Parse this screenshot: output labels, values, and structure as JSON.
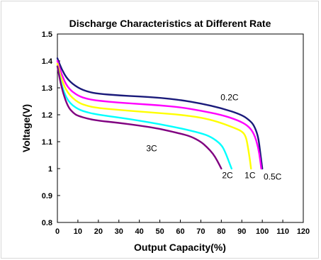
{
  "chart_data": {
    "type": "line",
    "title": "Discharge Characteristics at Different Rate",
    "xlabel": "Output Capacity(%)",
    "ylabel": "Voltage(V)",
    "xlim": [
      0,
      120
    ],
    "ylim": [
      0.8,
      1.5
    ],
    "xticks": [
      "0",
      "10",
      "20",
      "30",
      "40",
      "50",
      "60",
      "70",
      "80",
      "90",
      "100",
      "110",
      "120"
    ],
    "yticks": [
      "0.8",
      "0.9",
      "1",
      "1.1",
      "1.2",
      "1.3",
      "1.4",
      "1.5"
    ],
    "grid": false,
    "series": [
      {
        "name": "0.2C",
        "color": "#1a1a7a",
        "points": [
          [
            0,
            1.41
          ],
          [
            2,
            1.37
          ],
          [
            5,
            1.33
          ],
          [
            10,
            1.3
          ],
          [
            15,
            1.285
          ],
          [
            20,
            1.278
          ],
          [
            30,
            1.272
          ],
          [
            40,
            1.268
          ],
          [
            50,
            1.263
          ],
          [
            60,
            1.255
          ],
          [
            70,
            1.242
          ],
          [
            80,
            1.225
          ],
          [
            90,
            1.2
          ],
          [
            94,
            1.178
          ],
          [
            96,
            1.16
          ],
          [
            98,
            1.12
          ],
          [
            99,
            1.06
          ],
          [
            100,
            1.0
          ]
        ]
      },
      {
        "name": "0.5C",
        "color": "#ff00ff",
        "points": [
          [
            0,
            1.4
          ],
          [
            2,
            1.35
          ],
          [
            5,
            1.3
          ],
          [
            10,
            1.27
          ],
          [
            15,
            1.258
          ],
          [
            20,
            1.252
          ],
          [
            30,
            1.245
          ],
          [
            40,
            1.24
          ],
          [
            50,
            1.235
          ],
          [
            60,
            1.228
          ],
          [
            70,
            1.215
          ],
          [
            80,
            1.2
          ],
          [
            88,
            1.18
          ],
          [
            93,
            1.16
          ],
          [
            96,
            1.13
          ],
          [
            98,
            1.08
          ],
          [
            99,
            1.03
          ],
          [
            99.5,
            1.0
          ]
        ]
      },
      {
        "name": "1C",
        "color": "#ffff00",
        "points": [
          [
            0,
            1.39
          ],
          [
            2,
            1.33
          ],
          [
            5,
            1.28
          ],
          [
            10,
            1.245
          ],
          [
            15,
            1.232
          ],
          [
            20,
            1.225
          ],
          [
            30,
            1.218
          ],
          [
            40,
            1.212
          ],
          [
            50,
            1.206
          ],
          [
            60,
            1.2
          ],
          [
            70,
            1.19
          ],
          [
            78,
            1.175
          ],
          [
            85,
            1.155
          ],
          [
            90,
            1.14
          ],
          [
            92,
            1.12
          ],
          [
            93,
            1.08
          ],
          [
            94,
            1.03
          ],
          [
            94.5,
            1.0
          ]
        ]
      },
      {
        "name": "2C",
        "color": "#00ffff",
        "points": [
          [
            0,
            1.38
          ],
          [
            2,
            1.31
          ],
          [
            5,
            1.25
          ],
          [
            10,
            1.22
          ],
          [
            15,
            1.208
          ],
          [
            20,
            1.2
          ],
          [
            30,
            1.19
          ],
          [
            40,
            1.178
          ],
          [
            50,
            1.165
          ],
          [
            60,
            1.15
          ],
          [
            70,
            1.132
          ],
          [
            75,
            1.118
          ],
          [
            80,
            1.09
          ],
          [
            82,
            1.06
          ],
          [
            84,
            1.02
          ],
          [
            85,
            1.0
          ]
        ]
      },
      {
        "name": "3C",
        "color": "#800080",
        "points": [
          [
            0,
            1.38
          ],
          [
            2,
            1.3
          ],
          [
            5,
            1.23
          ],
          [
            8,
            1.205
          ],
          [
            10,
            1.196
          ],
          [
            15,
            1.185
          ],
          [
            20,
            1.178
          ],
          [
            30,
            1.17
          ],
          [
            40,
            1.16
          ],
          [
            50,
            1.148
          ],
          [
            60,
            1.13
          ],
          [
            65,
            1.12
          ],
          [
            70,
            1.1
          ],
          [
            73,
            1.08
          ],
          [
            76,
            1.055
          ],
          [
            78,
            1.03
          ],
          [
            80,
            1.0
          ]
        ]
      }
    ],
    "series_labels": [
      {
        "text": "0.2C",
        "x": 84,
        "y": 1.265
      },
      {
        "text": "0.5C",
        "x": 105,
        "y": 0.97
      },
      {
        "text": "1C",
        "x": 94,
        "y": 0.975
      },
      {
        "text": "2C",
        "x": 83,
        "y": 0.975
      },
      {
        "text": "3C",
        "x": 46,
        "y": 1.075
      }
    ]
  }
}
